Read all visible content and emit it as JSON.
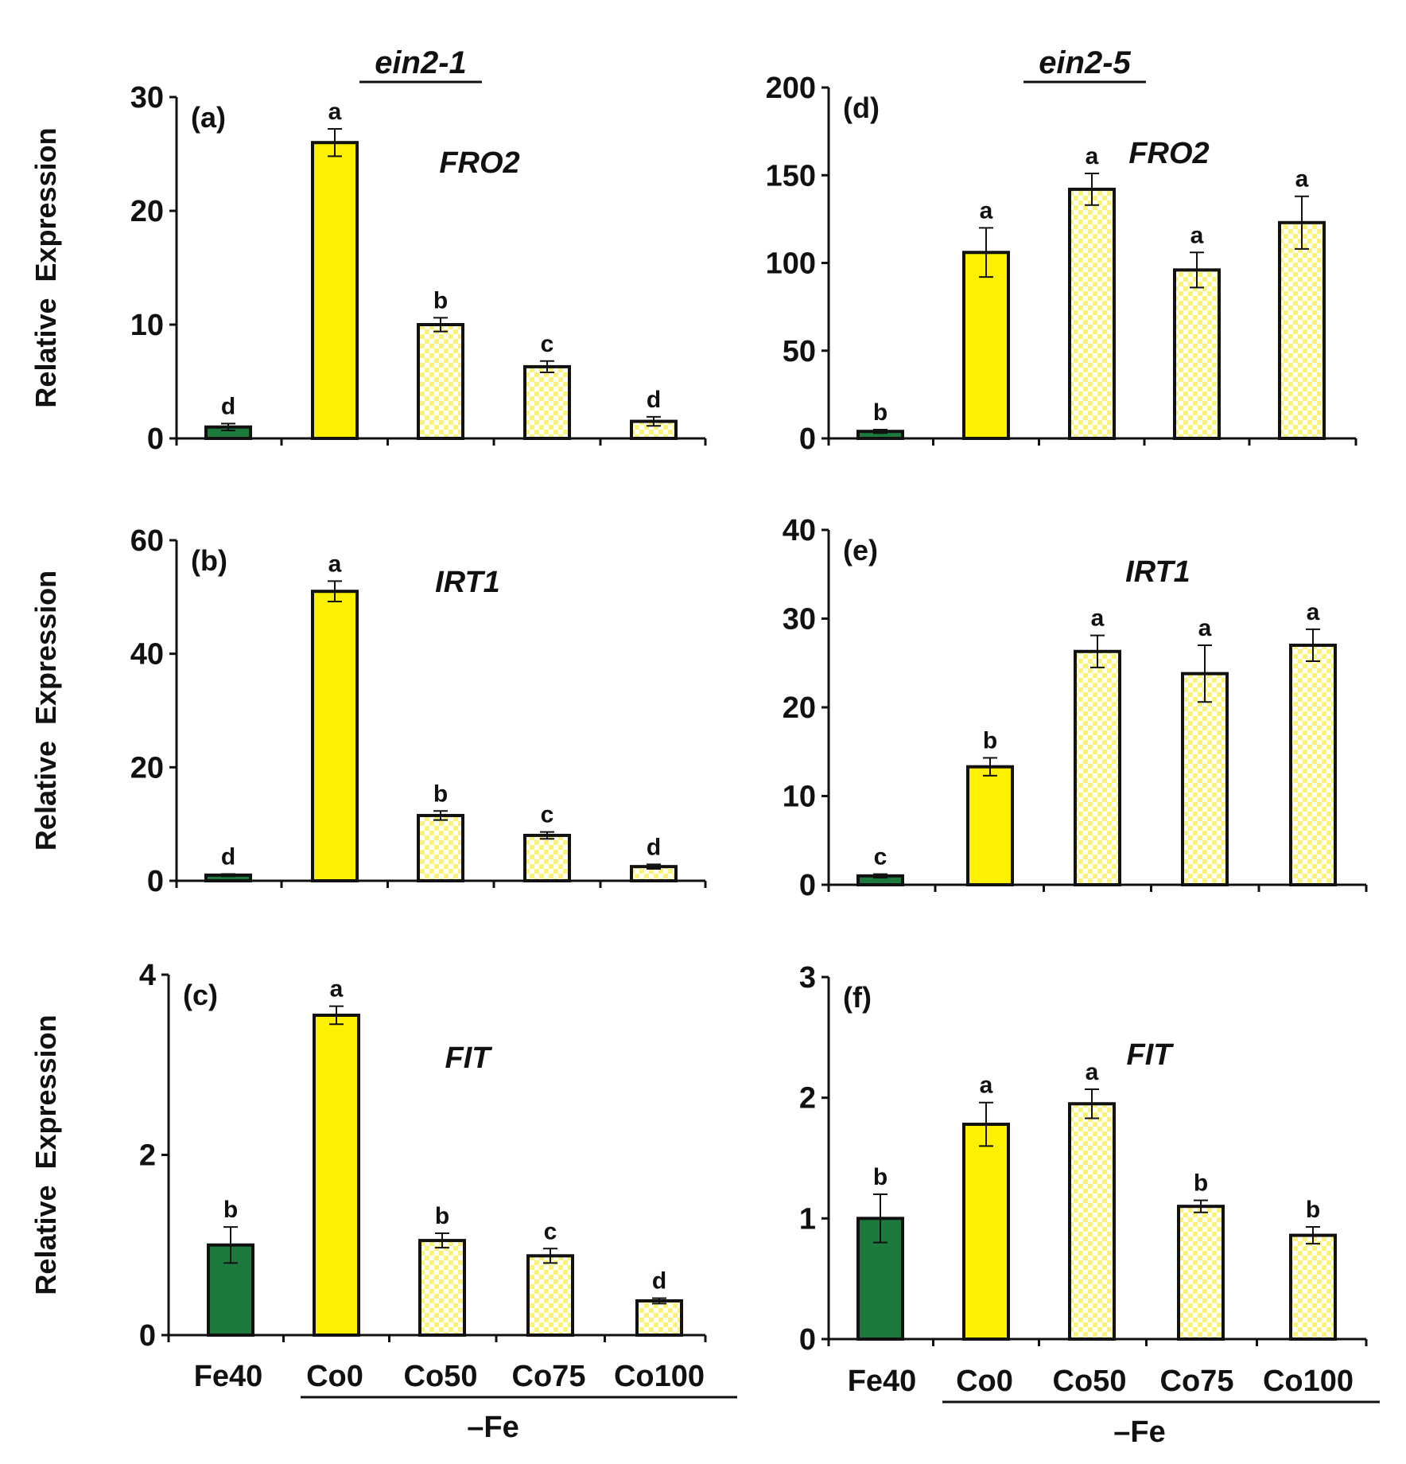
{
  "column_titles": [
    "ein2-1",
    "ein2-5"
  ],
  "colors": {
    "fe40_fill": "#1b7a3c",
    "co0_fill": "#fdf000",
    "checker_a": "#fbf27a",
    "checker_b": "#ffffff",
    "stroke": "#111111"
  },
  "y_axis_label": "Relative  Expression",
  "x_axis": {
    "categories": [
      "Fe40",
      "Co0",
      "Co50",
      "Co75",
      "Co100"
    ],
    "group_label": "–Fe"
  },
  "chart_data": [
    {
      "type": "bar",
      "panel": "(a)",
      "gene": "FRO2",
      "genotype": "ein2-1",
      "categories": [
        "Fe40",
        "Co0",
        "Co50",
        "Co75",
        "Co100"
      ],
      "values": [
        1.0,
        26.0,
        10.0,
        6.3,
        1.5
      ],
      "errors": [
        0.3,
        1.2,
        0.6,
        0.5,
        0.4
      ],
      "letters": [
        "d",
        "a",
        "b",
        "c",
        "d"
      ],
      "ylim": [
        0,
        30
      ],
      "yticks": [
        0,
        10,
        20,
        30
      ],
      "ylabel": "Relative  Expression"
    },
    {
      "type": "bar",
      "panel": "(b)",
      "gene": "IRT1",
      "genotype": "ein2-1",
      "categories": [
        "Fe40",
        "Co0",
        "Co50",
        "Co75",
        "Co100"
      ],
      "values": [
        1.0,
        51.0,
        11.5,
        8.0,
        2.5
      ],
      "errors": [
        0.2,
        1.8,
        0.8,
        0.6,
        0.4
      ],
      "letters": [
        "d",
        "a",
        "b",
        "c",
        "d"
      ],
      "ylim": [
        0,
        60
      ],
      "yticks": [
        0,
        20,
        40,
        60
      ],
      "ylabel": "Relative  Expression"
    },
    {
      "type": "bar",
      "panel": "(c)",
      "gene": "FIT",
      "genotype": "ein2-1",
      "categories": [
        "Fe40",
        "Co0",
        "Co50",
        "Co75",
        "Co100"
      ],
      "values": [
        1.0,
        3.55,
        1.05,
        0.88,
        0.38
      ],
      "errors": [
        0.2,
        0.1,
        0.08,
        0.08,
        0.03
      ],
      "letters": [
        "b",
        "a",
        "b",
        "c",
        "d"
      ],
      "ylim": [
        0,
        4
      ],
      "yticks": [
        0,
        2,
        4
      ],
      "ylabel": "Relative  Expression"
    },
    {
      "type": "bar",
      "panel": "(d)",
      "gene": "FRO2",
      "genotype": "ein2-5",
      "categories": [
        "Fe40",
        "Co0",
        "Co50",
        "Co75",
        "Co100"
      ],
      "values": [
        4,
        106,
        142,
        96,
        123
      ],
      "errors": [
        1,
        14,
        9,
        10,
        15
      ],
      "letters": [
        "b",
        "a",
        "a",
        "a",
        "a"
      ],
      "ylim": [
        0,
        200
      ],
      "yticks": [
        0,
        50,
        100,
        150,
        200
      ],
      "ylabel": ""
    },
    {
      "type": "bar",
      "panel": "(e)",
      "gene": "IRT1",
      "genotype": "ein2-5",
      "categories": [
        "Fe40",
        "Co0",
        "Co50",
        "Co75",
        "Co100"
      ],
      "values": [
        1.0,
        13.3,
        26.3,
        23.8,
        27.0
      ],
      "errors": [
        0.2,
        1.0,
        1.8,
        3.2,
        1.8
      ],
      "letters": [
        "c",
        "b",
        "a",
        "a",
        "a"
      ],
      "ylim": [
        0,
        40
      ],
      "yticks": [
        0,
        10,
        20,
        30,
        40
      ],
      "ylabel": ""
    },
    {
      "type": "bar",
      "panel": "(f)",
      "gene": "FIT",
      "genotype": "ein2-5",
      "categories": [
        "Fe40",
        "Co0",
        "Co50",
        "Co75",
        "Co100"
      ],
      "values": [
        1.0,
        1.78,
        1.95,
        1.1,
        0.86
      ],
      "errors": [
        0.2,
        0.18,
        0.12,
        0.05,
        0.07
      ],
      "letters": [
        "b",
        "a",
        "a",
        "b",
        "b"
      ],
      "ylim": [
        0,
        3
      ],
      "yticks": [
        0,
        1,
        2,
        3
      ],
      "ylabel": ""
    }
  ]
}
